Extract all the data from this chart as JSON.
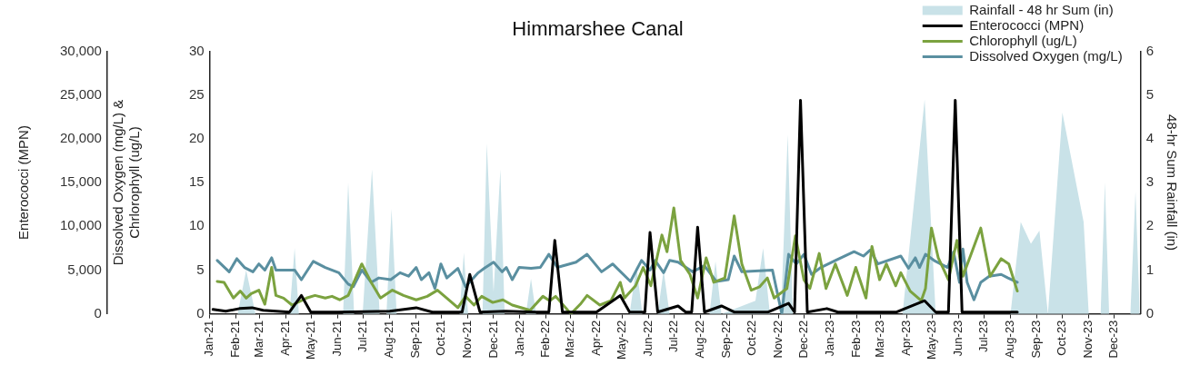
{
  "chart_data": {
    "type": "line",
    "title": "Himmarshee Canal",
    "ylabel": "Dissolved Oxygen (mg/L) & Chrlorophyll (ug/L)",
    "y2label": "48-hr Sum Rainfall (in)",
    "y3label": "Enterococci (MPN)",
    "legend": "top right",
    "xlim": [
      "2021-01-01",
      "2024-01-01"
    ],
    "xticks": [
      {
        "value": "2021-01-01",
        "label": "Jan-21"
      },
      {
        "value": "2021-02-01",
        "label": "Feb-21"
      },
      {
        "value": "2021-03-01",
        "label": "Mar-21"
      },
      {
        "value": "2021-04-01",
        "label": "Apr-21"
      },
      {
        "value": "2021-05-01",
        "label": "May-21"
      },
      {
        "value": "2021-06-01",
        "label": "Jun-21"
      },
      {
        "value": "2021-07-01",
        "label": "Jul-21"
      },
      {
        "value": "2021-08-01",
        "label": "Aug-21"
      },
      {
        "value": "2021-09-01",
        "label": "Sep-21"
      },
      {
        "value": "2021-10-01",
        "label": "Oct-21"
      },
      {
        "value": "2021-11-01",
        "label": "Nov-21"
      },
      {
        "value": "2021-12-01",
        "label": "Dec-21"
      },
      {
        "value": "2022-01-01",
        "label": "Jan-22"
      },
      {
        "value": "2022-02-01",
        "label": "Feb-22"
      },
      {
        "value": "2022-03-01",
        "label": "Mar-22"
      },
      {
        "value": "2022-04-01",
        "label": "Apr-22"
      },
      {
        "value": "2022-05-01",
        "label": "May-22"
      },
      {
        "value": "2022-06-01",
        "label": "Jun-22"
      },
      {
        "value": "2022-07-01",
        "label": "Jul-22"
      },
      {
        "value": "2022-08-01",
        "label": "Aug-22"
      },
      {
        "value": "2022-09-01",
        "label": "Sep-22"
      },
      {
        "value": "2022-10-01",
        "label": "Oct-22"
      },
      {
        "value": "2022-11-01",
        "label": "Nov-22"
      },
      {
        "value": "2022-12-01",
        "label": "Dec-22"
      },
      {
        "value": "2023-01-01",
        "label": "Jan-23"
      },
      {
        "value": "2023-02-01",
        "label": "Feb-23"
      },
      {
        "value": "2023-03-01",
        "label": "Mar-23"
      },
      {
        "value": "2023-04-01",
        "label": "Apr-23"
      },
      {
        "value": "2023-05-01",
        "label": "May-23"
      },
      {
        "value": "2023-06-01",
        "label": "Jun-23"
      },
      {
        "value": "2023-07-01",
        "label": "Jul-23"
      },
      {
        "value": "2023-08-01",
        "label": "Aug-23"
      },
      {
        "value": "2023-09-01",
        "label": "Sep-23"
      },
      {
        "value": "2023-10-01",
        "label": "Oct-23"
      },
      {
        "value": "2023-11-01",
        "label": "Nov-23"
      },
      {
        "value": "2023-12-01",
        "label": "Dec-23"
      }
    ],
    "ylim": [
      0,
      30
    ],
    "yticks": [
      0,
      5,
      10,
      15,
      20,
      25,
      30
    ],
    "y2lim": [
      0,
      6
    ],
    "y2ticks": [
      0,
      1,
      2,
      3,
      4,
      5,
      6
    ],
    "y3lim": [
      0,
      30000
    ],
    "y3ticks": [
      0,
      {
        "value": 5000,
        "label": "5,000"
      },
      {
        "value": 10000,
        "label": "10,000"
      },
      {
        "value": 15000,
        "label": "15,000"
      },
      {
        "value": 20000,
        "label": "20,000"
      },
      {
        "value": 25000,
        "label": "25,000"
      },
      {
        "value": 30000,
        "label": "30,000"
      }
    ],
    "series": [
      {
        "name": "Rainfall - 48 hr Sum (in)",
        "type": "area",
        "axis": "y2",
        "color": "#c9e2e8",
        "x": [
          "2021-01-10",
          "2021-02-03",
          "2021-02-13",
          "2021-02-24",
          "2021-04-05",
          "2021-04-11",
          "2021-04-16",
          "2021-06-07",
          "2021-06-13",
          "2021-06-20",
          "2021-06-30",
          "2021-07-11",
          "2021-07-20",
          "2021-07-28",
          "2021-08-03",
          "2021-08-09",
          "2021-10-22",
          "2021-10-27",
          "2021-11-01",
          "2021-11-18",
          "2021-11-23",
          "2021-12-01",
          "2021-12-09",
          "2021-12-14",
          "2022-01-08",
          "2022-01-14",
          "2022-01-20",
          "2022-05-10",
          "2022-05-18",
          "2022-05-25",
          "2022-06-12",
          "2022-06-19",
          "2022-06-26",
          "2022-08-12",
          "2022-08-19",
          "2022-08-26",
          "2022-10-05",
          "2022-10-14",
          "2022-10-22",
          "2022-11-04",
          "2022-11-12",
          "2022-11-18",
          "2023-03-27",
          "2023-04-22",
          "2023-05-05",
          "2023-08-01",
          "2023-08-13",
          "2023-08-25",
          "2023-09-04",
          "2023-09-14",
          "2023-10-01",
          "2023-10-26",
          "2023-11-01",
          "2023-11-15",
          "2023-11-20",
          "2023-11-25",
          "2023-12-20",
          "2023-12-26",
          "2023-12-31"
        ],
        "values": [
          0,
          0,
          1.0,
          0,
          0,
          1.5,
          0,
          0,
          3.0,
          0,
          0,
          3.3,
          0,
          0,
          2.4,
          0,
          0,
          1.4,
          0,
          0,
          3.9,
          0.5,
          3.3,
          0,
          0,
          0.8,
          0,
          0,
          1.1,
          0,
          0,
          1.0,
          0,
          0,
          1.2,
          0,
          0.3,
          1.5,
          0,
          0,
          4.1,
          0,
          0,
          4.9,
          0,
          0,
          2.1,
          1.6,
          1.9,
          0,
          4.6,
          2.1,
          0,
          0,
          3.0,
          0,
          0,
          2.8,
          0
        ]
      },
      {
        "name": "Enterococci (MPN)",
        "type": "line",
        "axis": "y3",
        "color": "#000000",
        "x": [
          "2021-01-05",
          "2021-01-20",
          "2021-02-05",
          "2021-02-20",
          "2021-03-05",
          "2021-04-05",
          "2021-04-19",
          "2021-04-30",
          "2021-06-01",
          "2021-08-01",
          "2021-09-01",
          "2021-09-20",
          "2021-10-25",
          "2021-11-03",
          "2021-11-15",
          "2021-12-15",
          "2022-01-20",
          "2022-02-04",
          "2022-02-11",
          "2022-02-20",
          "2022-04-01",
          "2022-04-29",
          "2022-05-10",
          "2022-05-28",
          "2022-06-03",
          "2022-06-12",
          "2022-07-06",
          "2022-07-15",
          "2022-07-22",
          "2022-07-29",
          "2022-08-06",
          "2022-08-26",
          "2022-09-10",
          "2022-10-20",
          "2022-11-13",
          "2022-11-20",
          "2022-11-27",
          "2022-12-05",
          "2022-12-28",
          "2023-01-10",
          "2023-03-20",
          "2023-04-22",
          "2023-05-05",
          "2023-05-20",
          "2023-05-28",
          "2023-06-05",
          "2023-08-09"
        ],
        "values": [
          500,
          300,
          600,
          700,
          400,
          200,
          2100,
          200,
          200,
          300,
          700,
          200,
          200,
          4500,
          200,
          300,
          200,
          200,
          8400,
          200,
          200,
          2100,
          200,
          200,
          9300,
          200,
          900,
          200,
          200,
          9900,
          200,
          900,
          200,
          200,
          1200,
          200,
          24400,
          200,
          600,
          200,
          200,
          1500,
          200,
          200,
          24400,
          200,
          200
        ]
      },
      {
        "name": "Chlorophyll (ug/L)",
        "type": "line",
        "axis": "y",
        "color": "#7ba23f",
        "x": [
          "2021-01-10",
          "2021-01-18",
          "2021-01-29",
          "2021-02-06",
          "2021-02-13",
          "2021-02-19",
          "2021-02-28",
          "2021-03-07",
          "2021-03-15",
          "2021-03-20",
          "2021-03-29",
          "2021-04-08",
          "2021-04-25",
          "2021-05-05",
          "2021-05-17",
          "2021-05-25",
          "2021-06-03",
          "2021-06-13",
          "2021-06-29",
          "2021-07-10",
          "2021-07-21",
          "2021-08-04",
          "2021-08-17",
          "2021-09-01",
          "2021-09-14",
          "2021-09-26",
          "2021-10-07",
          "2021-10-20",
          "2021-10-29",
          "2021-11-08",
          "2021-11-17",
          "2021-11-30",
          "2021-12-12",
          "2021-12-23",
          "2022-01-13",
          "2022-01-28",
          "2022-02-05",
          "2022-02-12",
          "2022-03-02",
          "2022-03-13",
          "2022-03-21",
          "2022-04-05",
          "2022-04-18",
          "2022-04-29",
          "2022-05-04",
          "2022-05-17",
          "2022-05-26",
          "2022-06-04",
          "2022-06-17",
          "2022-06-23",
          "2022-07-01",
          "2022-07-09",
          "2022-07-20",
          "2022-07-29",
          "2022-08-08",
          "2022-08-17",
          "2022-08-30",
          "2022-09-10",
          "2022-09-19",
          "2022-09-30",
          "2022-10-10",
          "2022-10-19",
          "2022-10-27",
          "2022-11-11",
          "2022-11-21",
          "2022-12-01",
          "2022-12-08",
          "2022-12-19",
          "2022-12-27",
          "2023-01-07",
          "2023-01-21",
          "2023-01-31",
          "2023-02-12",
          "2023-02-19",
          "2023-02-28",
          "2023-03-08",
          "2023-03-19",
          "2023-03-25",
          "2023-04-05",
          "2023-04-18",
          "2023-04-23",
          "2023-04-30",
          "2023-05-08",
          "2023-05-20",
          "2023-05-30",
          "2023-06-06",
          "2023-06-27",
          "2023-07-08",
          "2023-07-21",
          "2023-07-30",
          "2023-08-09"
        ],
        "values": [
          3.7,
          3.6,
          1.8,
          2.6,
          1.8,
          2.3,
          2.7,
          1.1,
          5.3,
          2.1,
          1.8,
          1.0,
          1.8,
          2.1,
          1.8,
          2.0,
          1.6,
          2.1,
          5.7,
          3.6,
          1.8,
          2.7,
          2.1,
          1.6,
          2.0,
          2.7,
          1.8,
          0.7,
          2.0,
          1.0,
          2.0,
          1.3,
          1.6,
          1.0,
          0.4,
          2.0,
          1.5,
          2.0,
          0,
          1.1,
          2.1,
          1.0,
          1.5,
          3.6,
          1.8,
          3.2,
          5.3,
          3.2,
          9.0,
          7.1,
          12.1,
          6.1,
          4.5,
          1.8,
          6.4,
          3.6,
          4.1,
          11.2,
          5.7,
          2.7,
          3.1,
          4.1,
          1.8,
          2.9,
          8.9,
          3.9,
          2.9,
          6.9,
          2.9,
          5.7,
          2.1,
          5.3,
          1.8,
          7.7,
          3.9,
          5.7,
          3.2,
          4.7,
          2.6,
          1.5,
          2.9,
          9.8,
          6.4,
          3.9,
          8.4,
          4.3,
          9.8,
          4.3,
          6.3,
          5.7,
          2.6
        ]
      },
      {
        "name": "Dissolved Oxygen (mg/L)",
        "type": "line",
        "axis": "y",
        "color": "#5a8fa0",
        "x": [
          "2021-01-10",
          "2021-01-24",
          "2021-02-02",
          "2021-02-11",
          "2021-02-21",
          "2021-02-28",
          "2021-03-07",
          "2021-03-15",
          "2021-03-20",
          "2021-04-11",
          "2021-04-19",
          "2021-05-03",
          "2021-05-17",
          "2021-06-02",
          "2021-06-07",
          "2021-06-13",
          "2021-06-19",
          "2021-06-29",
          "2021-07-10",
          "2021-07-19",
          "2021-08-02",
          "2021-08-13",
          "2021-08-23",
          "2021-09-01",
          "2021-09-07",
          "2021-09-16",
          "2021-09-23",
          "2021-09-30",
          "2021-10-07",
          "2021-10-20",
          "2021-10-29",
          "2021-11-13",
          "2021-11-20",
          "2021-12-01",
          "2021-12-11",
          "2021-12-16",
          "2021-12-23",
          "2021-12-31",
          "2022-01-14",
          "2022-01-25",
          "2022-02-04",
          "2022-02-14",
          "2022-03-08",
          "2022-03-21",
          "2022-04-07",
          "2022-04-20",
          "2022-05-11",
          "2022-05-24",
          "2022-06-03",
          "2022-06-09",
          "2022-06-19",
          "2022-06-26",
          "2022-07-06",
          "2022-07-23",
          "2022-08-06",
          "2022-08-20",
          "2022-09-03",
          "2022-09-10",
          "2022-09-19",
          "2022-10-25",
          "2022-11-05",
          "2022-11-13",
          "2022-11-22",
          "2022-12-01",
          "2022-12-10",
          "2022-12-21",
          "2023-01-07",
          "2023-01-29",
          "2023-02-09",
          "2023-02-17",
          "2023-02-26",
          "2023-03-25",
          "2023-04-03",
          "2023-04-11",
          "2023-04-16",
          "2023-04-23",
          "2023-05-03",
          "2023-05-19",
          "2023-05-26",
          "2023-06-02",
          "2023-06-06",
          "2023-06-11",
          "2023-06-19",
          "2023-06-27",
          "2023-07-07",
          "2023-07-21",
          "2023-07-29",
          "2023-08-09"
        ],
        "values": [
          6.1,
          4.8,
          6.3,
          5.3,
          4.8,
          5.7,
          5.0,
          6.4,
          5.0,
          5.0,
          3.9,
          6.0,
          5.3,
          4.7,
          4.1,
          3.4,
          3.1,
          5.0,
          3.6,
          4.1,
          3.9,
          4.7,
          4.3,
          5.3,
          3.9,
          4.7,
          2.9,
          5.7,
          4.1,
          5.2,
          3.1,
          4.7,
          5.2,
          5.9,
          4.8,
          5.3,
          3.9,
          5.3,
          5.2,
          5.3,
          6.8,
          5.3,
          5.9,
          6.8,
          4.8,
          5.7,
          3.7,
          6.1,
          5.0,
          6.1,
          4.7,
          6.1,
          5.9,
          4.8,
          5.5,
          3.7,
          3.9,
          6.6,
          4.8,
          5.0,
          0,
          6.8,
          5.7,
          6.8,
          4.5,
          5.3,
          6.1,
          7.1,
          6.6,
          7.3,
          5.7,
          6.6,
          5.2,
          6.4,
          5.3,
          6.8,
          6.1,
          5.3,
          7.1,
          3.6,
          7.4,
          3.6,
          1.6,
          3.6,
          4.3,
          4.5,
          4.1,
          3.6
        ]
      }
    ]
  }
}
